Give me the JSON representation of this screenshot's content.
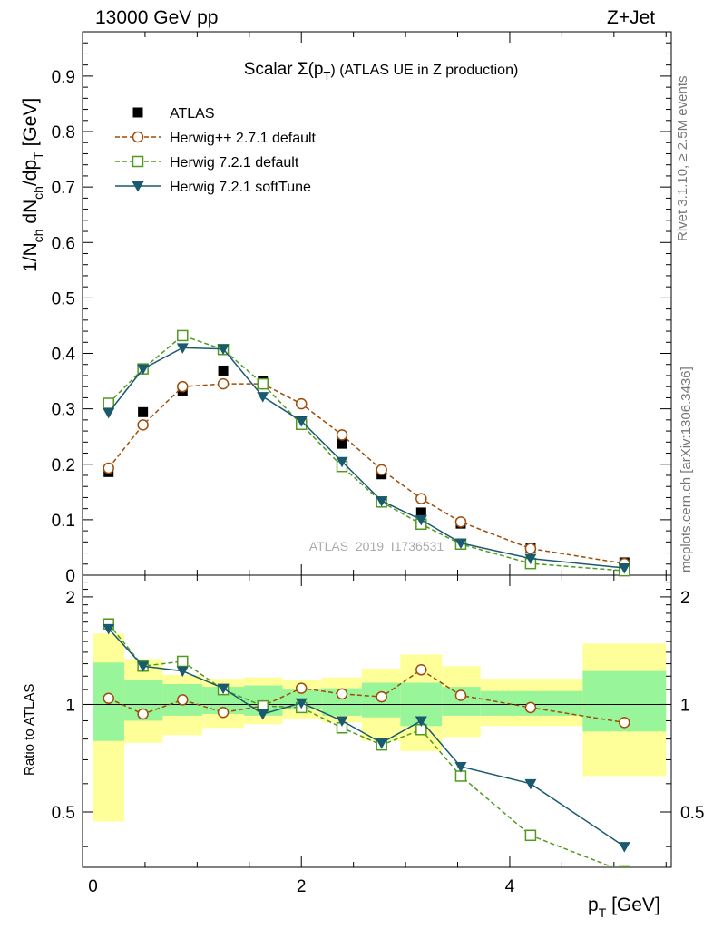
{
  "header": {
    "left_text": "13000 GeV pp",
    "right_text": "Z+Jet"
  },
  "side_labels": {
    "rivet": "Rivet 3.1.10, ≥ 2.5M events",
    "mcplots": "mcplots.cern.ch [arXiv:1306.3436]"
  },
  "chart_data": [
    {
      "type": "scatter",
      "title_main": "Scalar Σ(p",
      "title_sub": "T",
      "title_rest": ") (ATLAS UE in Z production)",
      "ylabel": "1/N_ch dN_ch/dp_T [GeV]",
      "xlim": [
        -0.1,
        5.55
      ],
      "ylim": [
        0,
        0.98
      ],
      "yticks": [
        0.1,
        0.2,
        0.3,
        0.4,
        0.5,
        0.6,
        0.7,
        0.8,
        0.9
      ],
      "ytick_labels": [
        "0.1",
        "0.2",
        "0.3",
        "0.4",
        "0.5",
        "0.6",
        "0.7",
        "0.8",
        "0.9"
      ],
      "y_zero_label": "0",
      "watermark": "ATLAS_2019_I1736531",
      "legend_position": "top-left",
      "x": [
        0.15,
        0.48,
        0.86,
        1.25,
        1.63,
        2.0,
        2.39,
        2.77,
        3.15,
        3.53,
        4.2,
        5.1
      ],
      "series": [
        {
          "name": "ATLAS",
          "color": "#000000",
          "marker": "filled-square",
          "line": "none",
          "values": [
            0.186,
            0.294,
            0.333,
            0.369,
            0.35,
            0.278,
            0.237,
            0.182,
            0.113,
            0.093,
            0.049,
            0.023
          ]
        },
        {
          "name": "Herwig++ 2.7.1 default",
          "color": "#a04c08",
          "marker": "open-circle",
          "line": "dashed",
          "values": [
            0.193,
            0.271,
            0.34,
            0.345,
            0.345,
            0.309,
            0.253,
            0.19,
            0.138,
            0.096,
            0.048,
            0.021
          ]
        },
        {
          "name": "Herwig 7.2.1 default",
          "color": "#4f9a1f",
          "marker": "open-square",
          "line": "dashed",
          "values": [
            0.31,
            0.372,
            0.432,
            0.407,
            0.345,
            0.272,
            0.196,
            0.132,
            0.092,
            0.056,
            0.021,
            0.008
          ]
        },
        {
          "name": "Herwig 7.2.1 softTune",
          "color": "#1a5a6e",
          "marker": "filled-triangle-down",
          "line": "solid",
          "values": [
            0.293,
            0.372,
            0.41,
            0.408,
            0.322,
            0.278,
            0.205,
            0.134,
            0.1,
            0.058,
            0.03,
            0.013
          ]
        }
      ]
    },
    {
      "type": "scatter",
      "ylabel": "Ratio to ATLAS",
      "xlabel": "p_T [GeV]",
      "xlim": [
        -0.1,
        5.55
      ],
      "ylim": [
        0.35,
        2.3
      ],
      "y_scale": "log",
      "yticks": [
        0.5,
        1,
        2
      ],
      "ytick_labels": [
        "0.5",
        "1",
        "2"
      ],
      "xticks": [
        0,
        2,
        4
      ],
      "xtick_labels": [
        "0",
        "2",
        "4"
      ],
      "reference_line": 1,
      "bin_edges": [
        0.0,
        0.3,
        0.67,
        1.05,
        1.45,
        1.82,
        2.2,
        2.58,
        2.95,
        3.35,
        3.72,
        4.7,
        5.5
      ],
      "band_yellow_lo": [
        0.47,
        0.78,
        0.82,
        0.86,
        0.88,
        0.91,
        0.89,
        0.79,
        0.74,
        0.81,
        0.87,
        0.63
      ],
      "band_yellow_hi": [
        1.58,
        1.34,
        1.21,
        1.18,
        1.19,
        1.17,
        1.19,
        1.26,
        1.38,
        1.28,
        1.18,
        1.48
      ],
      "band_green_lo": [
        0.79,
        0.9,
        0.93,
        0.94,
        0.93,
        0.97,
        0.93,
        0.92,
        0.87,
        0.93,
        0.93,
        0.84
      ],
      "band_green_hi": [
        1.31,
        1.17,
        1.14,
        1.12,
        1.13,
        1.1,
        1.11,
        1.15,
        1.15,
        1.12,
        1.09,
        1.24
      ],
      "x": [
        0.15,
        0.48,
        0.86,
        1.25,
        1.63,
        2.0,
        2.39,
        2.77,
        3.15,
        3.53,
        4.2,
        5.1
      ],
      "series": [
        {
          "name": "Herwig++ 2.7.1 default",
          "color": "#a04c08",
          "marker": "open-circle",
          "line": "dashed",
          "values": [
            1.04,
            0.94,
            1.03,
            0.95,
            0.99,
            1.11,
            1.07,
            1.05,
            1.25,
            1.06,
            0.98,
            0.89
          ]
        },
        {
          "name": "Herwig 7.2.1 default",
          "color": "#4f9a1f",
          "marker": "open-square",
          "line": "dashed",
          "values": [
            1.68,
            1.28,
            1.32,
            1.1,
            0.99,
            0.98,
            0.86,
            0.77,
            0.85,
            0.63,
            0.43,
            0.34
          ]
        },
        {
          "name": "Herwig 7.2.1 softTune",
          "color": "#1a5a6e",
          "marker": "filled-triangle-down",
          "line": "solid",
          "values": [
            1.63,
            1.28,
            1.24,
            1.11,
            0.94,
            1.01,
            0.9,
            0.78,
            0.9,
            0.67,
            0.6,
            0.4
          ]
        }
      ]
    }
  ]
}
